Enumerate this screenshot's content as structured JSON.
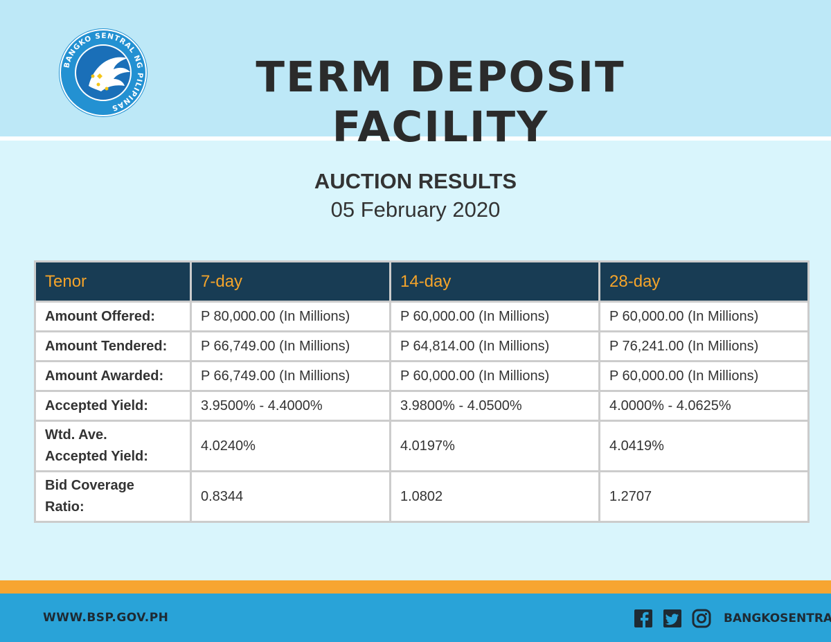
{
  "header": {
    "title": "TERM DEPOSIT FACILITY",
    "seal": {
      "text": "BANGKO SENTRAL NG PILIPINAS",
      "colors": {
        "outer": "#2391d2",
        "inner": "#1a6fb8",
        "accent": "#f5c518"
      }
    }
  },
  "auction": {
    "heading": "AUCTION RESULTS",
    "date": "05 February 2020"
  },
  "table": {
    "headers": [
      "Tenor",
      "7-day",
      "14-day",
      "28-day"
    ],
    "rows": [
      {
        "label": "Amount Offered:",
        "values": [
          "P 80,000.00 (In Millions)",
          "P 60,000.00 (In Millions)",
          "P 60,000.00 (In Millions)"
        ]
      },
      {
        "label": "Amount Tendered:",
        "values": [
          "P 66,749.00 (In Millions)",
          "P 64,814.00 (In Millions)",
          "P 76,241.00 (In Millions)"
        ]
      },
      {
        "label": "Amount Awarded:",
        "values": [
          "P 66,749.00 (In Millions)",
          "P 60,000.00 (In Millions)",
          "P 60,000.00 (In Millions)"
        ]
      },
      {
        "label": "Accepted Yield:",
        "values": [
          "3.9500% - 4.4000%",
          "3.9800% - 4.0500%",
          "4.0000% - 4.0625%"
        ]
      },
      {
        "label_lines": [
          "Wtd. Ave.",
          "Accepted Yield:"
        ],
        "values": [
          "4.0240%",
          "4.0197%",
          "4.0419%"
        ]
      },
      {
        "label_lines": [
          "Bid Coverage",
          "Ratio:"
        ],
        "values": [
          "0.8344",
          "1.0802",
          "1.2707"
        ]
      }
    ]
  },
  "footer": {
    "website": "WWW.BSP.GOV.PH",
    "social_icons": [
      "facebook-icon",
      "twitter-icon",
      "instagram-icon"
    ],
    "handle": "BANGKOSENTRAL"
  },
  "colors": {
    "header_bg": "#bde8f7",
    "body_bg": "#d9f5fc",
    "table_header_bg": "#183c54",
    "table_header_text": "#f5a42a",
    "orange_bar": "#f7a531",
    "footer_bg": "#29a3d8"
  }
}
